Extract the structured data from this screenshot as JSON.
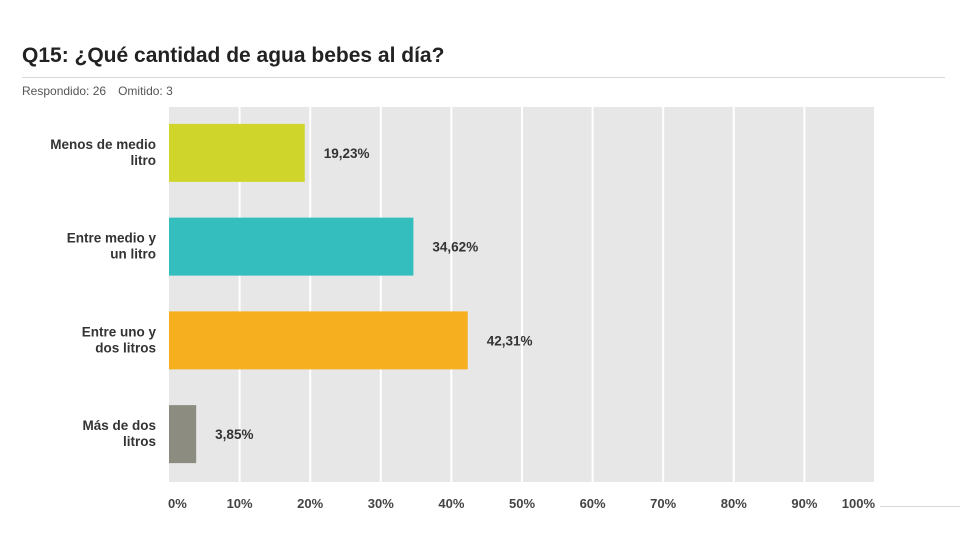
{
  "question": {
    "title": "Q15: ¿Qué cantidad de agua bebes al día?",
    "answered": "Respondido: 26",
    "skipped": "Omitido: 3"
  },
  "chart_data": {
    "type": "bar",
    "orientation": "horizontal",
    "categories": [
      [
        "Menos de medio",
        "litro"
      ],
      [
        "Entre medio y",
        "un litro"
      ],
      [
        "Entre uno y",
        "dos litros"
      ],
      [
        "Más de dos",
        "litros"
      ]
    ],
    "values": [
      19.23,
      34.62,
      42.31,
      3.85
    ],
    "value_labels": [
      "19,23%",
      "34,62%",
      "42,31%",
      "3,85%"
    ],
    "colors": [
      "#cfd52b",
      "#35bebe",
      "#f5af1f",
      "#8c8c80"
    ],
    "xlim": [
      0,
      100
    ],
    "xticks": [
      "0%",
      "10%",
      "20%",
      "30%",
      "40%",
      "50%",
      "60%",
      "70%",
      "80%",
      "90%",
      "100%"
    ],
    "grid": true,
    "plot_background": "#e7e7e7"
  }
}
